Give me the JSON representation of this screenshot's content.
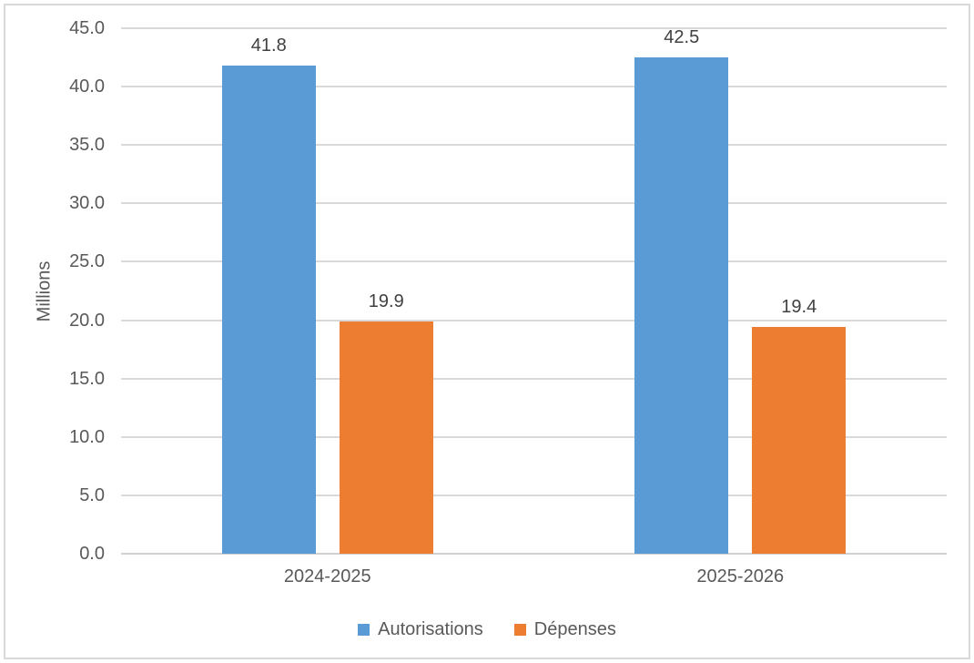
{
  "chart_data": {
    "type": "bar",
    "categories": [
      "2024-2025",
      "2025-2026"
    ],
    "series": [
      {
        "name": "Autorisations",
        "color": "#5B9BD5",
        "values": [
          41.8,
          42.5
        ]
      },
      {
        "name": "Dépenses",
        "color": "#ED7D31",
        "values": [
          19.9,
          19.4
        ]
      }
    ],
    "title": "",
    "xlabel": "",
    "ylabel": "Millions",
    "ylim": [
      0,
      45
    ],
    "ytick_step": 5,
    "ytick_decimals": 1,
    "grid": true,
    "data_labels": true,
    "legend_position": "bottom"
  },
  "colors": {
    "gridline": "#d9d9d9",
    "axis_line": "#d0d0d0",
    "tick_text": "#595959",
    "category_text": "#595959",
    "data_label_text": "#404040",
    "legend_text": "#595959",
    "frame_border": "#d9d9d9",
    "background": "#ffffff"
  }
}
